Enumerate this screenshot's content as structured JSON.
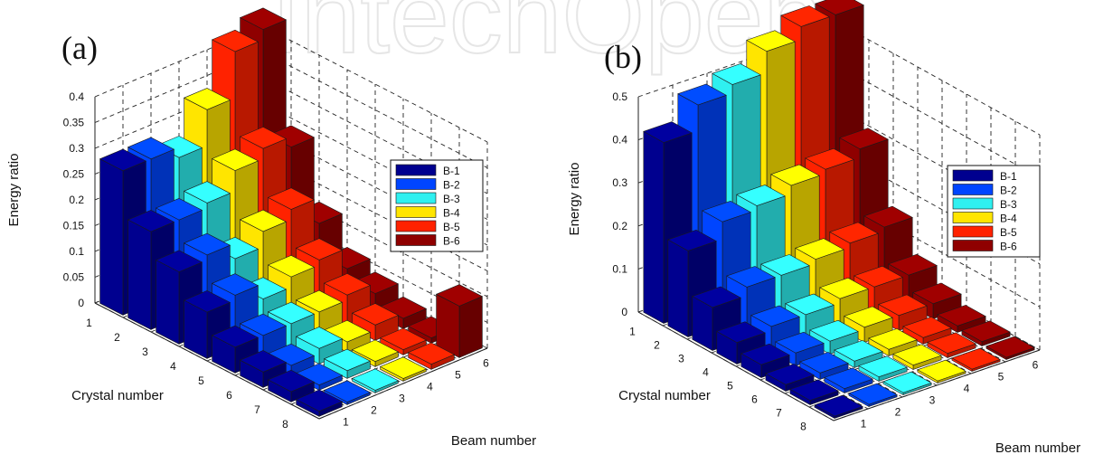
{
  "chart_data": [
    {
      "type": "bar3d",
      "panel_label": "(a)",
      "ylabel": "Energy ratio",
      "xlabel_crystal": "Crystal number",
      "xlabel_beam": "Beam number",
      "zlim": [
        0,
        0.4
      ],
      "zticks": [
        0,
        0.05,
        0.1,
        0.15,
        0.2,
        0.25,
        0.3,
        0.35,
        0.4
      ],
      "ztick_labels": [
        "0",
        "0.05",
        "0.1",
        "0.15",
        "0.2",
        "0.25",
        "0.3",
        "0.35",
        "0.4"
      ],
      "crystals": [
        "1",
        "2",
        "3",
        "4",
        "5",
        "6",
        "7",
        "8"
      ],
      "beams": [
        "1",
        "2",
        "3",
        "4",
        "5",
        "6"
      ],
      "grid": true,
      "legend_position": "right",
      "series": [
        {
          "name": "B-1",
          "color": "#00008f",
          "values": [
            0.28,
            0.19,
            0.14,
            0.09,
            0.05,
            0.03,
            0.02,
            0.01
          ]
        },
        {
          "name": "B-2",
          "color": "#0045ff",
          "values": [
            0.28,
            0.19,
            0.15,
            0.1,
            0.05,
            0.02,
            0.01,
            0.005
          ]
        },
        {
          "name": "B-3",
          "color": "#2ff0f0",
          "values": [
            0.26,
            0.2,
            0.12,
            0.07,
            0.05,
            0.03,
            0.015,
            0.005
          ]
        },
        {
          "name": "B-4",
          "color": "#ffe500",
          "values": [
            0.33,
            0.24,
            0.15,
            0.09,
            0.05,
            0.02,
            0.01,
            0.005
          ]
        },
        {
          "name": "B-5",
          "color": "#ff2200",
          "values": [
            0.42,
            0.26,
            0.17,
            0.1,
            0.06,
            0.03,
            0.01,
            0.01
          ]
        },
        {
          "name": "B-6",
          "color": "#8f0000",
          "values": [
            0.44,
            0.24,
            0.12,
            0.06,
            0.04,
            0.02,
            0.01,
            0.1
          ]
        }
      ]
    },
    {
      "type": "bar3d",
      "panel_label": "(b)",
      "ylabel": "Energy ratio",
      "xlabel_crystal": "Crystal number",
      "xlabel_beam": "Beam number",
      "zlim": [
        0,
        0.5
      ],
      "zticks": [
        0,
        0.1,
        0.2,
        0.3,
        0.4,
        0.5
      ],
      "ztick_labels": [
        "0",
        "0.1",
        "0.2",
        "0.3",
        "0.4",
        "0.5"
      ],
      "crystals": [
        "1",
        "2",
        "3",
        "4",
        "5",
        "6",
        "7",
        "8"
      ],
      "beams": [
        "1",
        "2",
        "3",
        "4",
        "5",
        "6"
      ],
      "grid": true,
      "legend_position": "right",
      "series": [
        {
          "name": "B-1",
          "color": "#00008f",
          "values": [
            0.42,
            0.2,
            0.1,
            0.05,
            0.03,
            0.015,
            0.01,
            0.005
          ]
        },
        {
          "name": "B-2",
          "color": "#0045ff",
          "values": [
            0.48,
            0.24,
            0.12,
            0.06,
            0.03,
            0.015,
            0.01,
            0.005
          ]
        },
        {
          "name": "B-3",
          "color": "#2ff0f0",
          "values": [
            0.5,
            0.25,
            0.12,
            0.06,
            0.03,
            0.015,
            0.01,
            0.005
          ]
        },
        {
          "name": "B-4",
          "color": "#ffe500",
          "values": [
            0.55,
            0.27,
            0.13,
            0.07,
            0.035,
            0.015,
            0.01,
            0.005
          ]
        },
        {
          "name": "B-5",
          "color": "#ff2200",
          "values": [
            0.58,
            0.28,
            0.14,
            0.07,
            0.035,
            0.015,
            0.01,
            0.005
          ]
        },
        {
          "name": "B-6",
          "color": "#8f0000",
          "values": [
            0.58,
            0.3,
            0.15,
            0.07,
            0.035,
            0.015,
            0.01,
            0.005
          ]
        }
      ]
    }
  ],
  "watermark": "IntechOpen"
}
